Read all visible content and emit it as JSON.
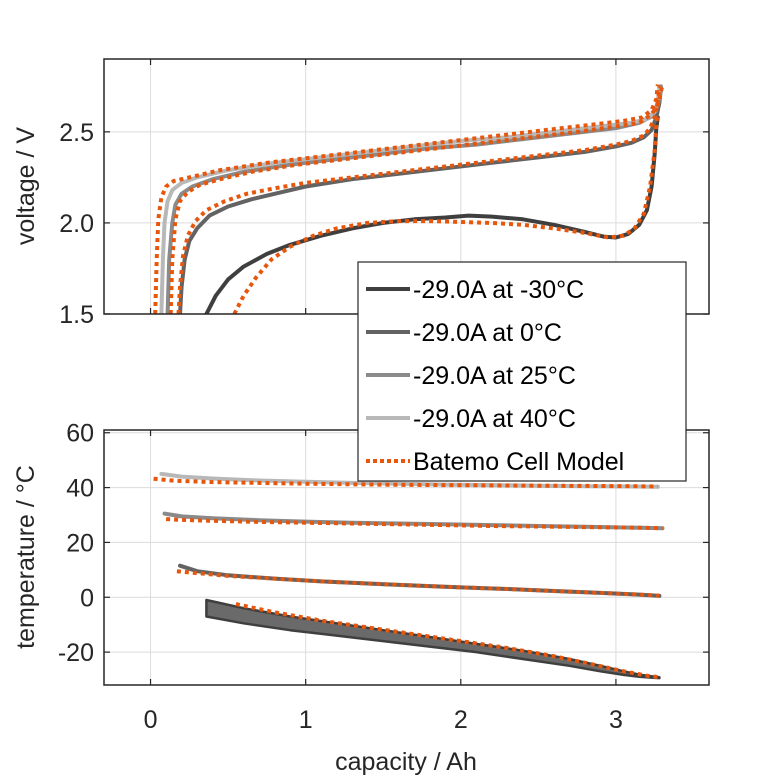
{
  "chart_data": [
    {
      "type": "line",
      "panel": "top",
      "title": "",
      "xlabel": "",
      "ylabel": "voltage / V",
      "xlim": [
        -0.3,
        3.6
      ],
      "ylim": [
        1.5,
        2.9
      ],
      "xticks": [
        0,
        1,
        2,
        3
      ],
      "yticks": [
        1.5,
        2.0,
        2.5
      ],
      "ytick_labels": [
        "1.5",
        "2.0",
        "2.5"
      ],
      "show_xtick_labels": false,
      "grid": true,
      "series": [
        {
          "name": "-29.0A at -30°C",
          "color": "#3f3f3f",
          "style": "solid",
          "x": [
            0.36,
            0.42,
            0.5,
            0.6,
            0.75,
            0.9,
            1.1,
            1.3,
            1.5,
            1.7,
            1.9,
            2.05,
            2.2,
            2.4,
            2.6,
            2.8,
            2.92,
            3.0,
            3.08,
            3.15,
            3.2,
            3.23,
            3.25,
            3.26,
            3.27
          ],
          "y": [
            1.5,
            1.6,
            1.69,
            1.76,
            1.83,
            1.88,
            1.93,
            1.97,
            2.0,
            2.02,
            2.03,
            2.04,
            2.035,
            2.02,
            1.99,
            1.95,
            1.925,
            1.92,
            1.94,
            1.99,
            2.07,
            2.2,
            2.38,
            2.52,
            2.58
          ]
        },
        {
          "name": "-29.0A at 0°C",
          "color": "#636363",
          "style": "solid",
          "x": [
            0.19,
            0.2,
            0.22,
            0.25,
            0.3,
            0.38,
            0.5,
            0.65,
            0.8,
            1.0,
            1.3,
            1.6,
            1.9,
            2.2,
            2.5,
            2.8,
            3.0,
            3.1,
            3.18,
            3.23,
            3.26,
            3.28,
            3.29
          ],
          "y": [
            1.5,
            1.65,
            1.8,
            1.9,
            1.97,
            2.04,
            2.09,
            2.13,
            2.16,
            2.2,
            2.24,
            2.27,
            2.3,
            2.33,
            2.36,
            2.39,
            2.42,
            2.44,
            2.47,
            2.51,
            2.58,
            2.66,
            2.74
          ]
        },
        {
          "name": "-29.0A at 25°C",
          "color": "#8a8a8a",
          "style": "solid",
          "x": [
            0.11,
            0.12,
            0.14,
            0.16,
            0.2,
            0.27,
            0.4,
            0.6,
            0.9,
            1.2,
            1.5,
            1.8,
            2.1,
            2.4,
            2.7,
            3.0,
            3.15,
            3.22,
            3.26,
            3.28,
            3.29
          ],
          "y": [
            1.5,
            1.8,
            2.0,
            2.1,
            2.16,
            2.2,
            2.24,
            2.28,
            2.32,
            2.35,
            2.38,
            2.41,
            2.43,
            2.46,
            2.49,
            2.52,
            2.55,
            2.58,
            2.62,
            2.68,
            2.75
          ]
        },
        {
          "name": "-29.0A at 40°C",
          "color": "#b8b8b8",
          "style": "solid",
          "x": [
            0.07,
            0.08,
            0.09,
            0.11,
            0.14,
            0.2,
            0.3,
            0.5,
            0.8,
            1.1,
            1.4,
            1.7,
            2.0,
            2.3,
            2.6,
            2.9,
            3.1,
            3.2,
            3.25,
            3.27,
            3.28
          ],
          "y": [
            1.5,
            1.8,
            2.0,
            2.12,
            2.18,
            2.22,
            2.25,
            2.29,
            2.33,
            2.36,
            2.39,
            2.42,
            2.45,
            2.47,
            2.5,
            2.53,
            2.55,
            2.57,
            2.61,
            2.67,
            2.74
          ]
        },
        {
          "name": "Batemo Cell Model",
          "color": "#e8560c",
          "style": "dotted",
          "curves": [
            {
              "x": [
                0.54,
                0.6,
                0.68,
                0.78,
                0.9,
                1.05,
                1.2,
                1.4,
                1.6,
                1.8,
                2.0,
                2.2,
                2.4,
                2.6,
                2.8,
                2.95,
                3.05,
                3.12,
                3.18,
                3.22,
                3.25,
                3.26,
                3.27
              ],
              "y": [
                1.5,
                1.6,
                1.7,
                1.8,
                1.87,
                1.93,
                1.97,
                2.0,
                2.01,
                2.01,
                2.005,
                2.0,
                1.99,
                1.97,
                1.945,
                1.92,
                1.93,
                1.97,
                2.05,
                2.2,
                2.4,
                2.54,
                2.6
              ]
            },
            {
              "x": [
                0.18,
                0.19,
                0.21,
                0.24,
                0.29,
                0.36,
                0.48,
                0.62,
                0.8,
                1.0,
                1.3,
                1.6,
                1.9,
                2.2,
                2.5,
                2.8,
                3.0,
                3.1,
                3.18,
                3.22,
                3.25,
                3.27,
                3.28
              ],
              "y": [
                1.5,
                1.65,
                1.82,
                1.93,
                2.01,
                2.07,
                2.12,
                2.16,
                2.19,
                2.22,
                2.25,
                2.28,
                2.31,
                2.34,
                2.37,
                2.4,
                2.43,
                2.45,
                2.48,
                2.52,
                2.58,
                2.66,
                2.75
              ]
            },
            {
              "x": [
                0.13,
                0.14,
                0.16,
                0.19,
                0.24,
                0.32,
                0.45,
                0.65,
                0.95,
                1.25,
                1.55,
                1.85,
                2.15,
                2.45,
                2.75,
                3.0,
                3.15,
                3.22,
                3.26,
                3.28,
                3.3
              ],
              "y": [
                1.5,
                1.8,
                2.02,
                2.12,
                2.17,
                2.21,
                2.24,
                2.28,
                2.32,
                2.35,
                2.38,
                2.41,
                2.44,
                2.47,
                2.5,
                2.53,
                2.55,
                2.59,
                2.63,
                2.68,
                2.76
              ]
            },
            {
              "x": [
                0.03,
                0.04,
                0.05,
                0.07,
                0.1,
                0.15,
                0.25,
                0.45,
                0.75,
                1.05,
                1.35,
                1.65,
                1.95,
                2.25,
                2.55,
                2.85,
                3.05,
                3.17,
                3.23,
                3.26,
                3.27
              ],
              "y": [
                1.5,
                1.8,
                2.02,
                2.14,
                2.2,
                2.23,
                2.25,
                2.29,
                2.33,
                2.36,
                2.39,
                2.42,
                2.45,
                2.48,
                2.51,
                2.54,
                2.56,
                2.58,
                2.62,
                2.68,
                2.76
              ]
            }
          ]
        }
      ],
      "legend": {
        "position": "inside-bottom-right",
        "entries": [
          {
            "label": "-29.0A at -30°C",
            "color": "#3f3f3f",
            "style": "solid"
          },
          {
            "label": "-29.0A at 0°C",
            "color": "#636363",
            "style": "solid"
          },
          {
            "label": "-29.0A at 25°C",
            "color": "#8a8a8a",
            "style": "solid"
          },
          {
            "label": "-29.0A at 40°C",
            "color": "#b8b8b8",
            "style": "solid"
          },
          {
            "label": "Batemo Cell Model",
            "color": "#e8560c",
            "style": "dotted"
          }
        ]
      }
    },
    {
      "type": "line",
      "panel": "bottom",
      "title": "",
      "xlabel": "capacity / Ah",
      "ylabel": "temperature / °C",
      "xlim": [
        -0.3,
        3.6
      ],
      "ylim": [
        -32,
        61
      ],
      "xticks": [
        0,
        1,
        2,
        3
      ],
      "xtick_labels": [
        "0",
        "1",
        "2",
        "3"
      ],
      "yticks": [
        -20,
        0,
        20,
        40,
        60
      ],
      "ytick_labels": [
        "-20",
        "0",
        "20",
        "40",
        "60"
      ],
      "grid": true,
      "series": [
        {
          "name": "-29.0A at -30°C",
          "color": "#3f3f3f",
          "style": "band",
          "x": [
            0.36,
            0.6,
            0.9,
            1.2,
            1.5,
            1.8,
            2.1,
            2.4,
            2.7,
            2.9,
            3.05,
            3.15,
            3.25,
            3.28
          ],
          "y_upper": [
            -1,
            -4,
            -7,
            -9.5,
            -12,
            -14.5,
            -17,
            -19.5,
            -22.5,
            -25,
            -27,
            -28.2,
            -29,
            -29.2
          ],
          "y_lower": [
            -7,
            -9.5,
            -12,
            -14,
            -16,
            -18,
            -20,
            -22.5,
            -25,
            -27,
            -28.3,
            -29,
            -29.4,
            -29.5
          ]
        },
        {
          "name": "-29.0A at 0°C",
          "color": "#636363",
          "style": "solid",
          "x": [
            0.19,
            0.3,
            0.5,
            0.8,
            1.1,
            1.4,
            1.7,
            2.0,
            2.3,
            2.6,
            2.9,
            3.1,
            3.28
          ],
          "y": [
            11.5,
            9.5,
            8,
            6.8,
            5.8,
            5,
            4.3,
            3.6,
            3,
            2.3,
            1.6,
            1.1,
            0.5
          ]
        },
        {
          "name": "-29.0A at 25°C",
          "color": "#8a8a8a",
          "style": "solid",
          "x": [
            0.09,
            0.2,
            0.4,
            0.7,
            1.0,
            1.3,
            1.6,
            1.9,
            2.2,
            2.5,
            2.8,
            3.1,
            3.3
          ],
          "y": [
            30.5,
            29.5,
            28.8,
            28.1,
            27.6,
            27.2,
            26.9,
            26.6,
            26.3,
            26,
            25.7,
            25.4,
            25.2
          ]
        },
        {
          "name": "-29.0A at 40°C",
          "color": "#b8b8b8",
          "style": "solid",
          "x": [
            0.07,
            0.2,
            0.4,
            0.7,
            1.0,
            1.3,
            1.6,
            1.9,
            2.2,
            2.5,
            2.8,
            3.1,
            3.27
          ],
          "y": [
            45,
            44,
            43.3,
            42.6,
            42.1,
            41.7,
            41.4,
            41.1,
            40.9,
            40.7,
            40.5,
            40.4,
            40.3
          ]
        },
        {
          "name": "Batemo Cell Model",
          "color": "#e8560c",
          "style": "dotted",
          "curves": [
            {
              "x": [
                0.55,
                0.8,
                1.1,
                1.4,
                1.7,
                2.0,
                2.3,
                2.6,
                2.85,
                3.05,
                3.2,
                3.28
              ],
              "y": [
                -2.5,
                -5.5,
                -8.5,
                -11,
                -13.5,
                -16,
                -18.5,
                -21.5,
                -24.5,
                -27,
                -28.6,
                -29.2
              ]
            },
            {
              "x": [
                0.17,
                0.3,
                0.5,
                0.8,
                1.1,
                1.4,
                1.7,
                2.0,
                2.3,
                2.6,
                2.9,
                3.1,
                3.28
              ],
              "y": [
                9.5,
                8.8,
                7.8,
                6.8,
                5.8,
                5,
                4.3,
                3.6,
                3,
                2.3,
                1.6,
                1.1,
                0.6
              ]
            },
            {
              "x": [
                0.1,
                0.2,
                0.4,
                0.7,
                1.0,
                1.3,
                1.6,
                1.9,
                2.2,
                2.5,
                2.8,
                3.1,
                3.3
              ],
              "y": [
                28.5,
                28.2,
                27.9,
                27.5,
                27.2,
                26.9,
                26.6,
                26.3,
                26,
                25.8,
                25.6,
                25.4,
                25.2
              ]
            },
            {
              "x": [
                0.02,
                0.15,
                0.4,
                0.7,
                1.0,
                1.3,
                1.6,
                1.9,
                2.2,
                2.5,
                2.8,
                3.1,
                3.27
              ],
              "y": [
                43.2,
                42.5,
                42,
                41.7,
                41.4,
                41.2,
                41,
                40.9,
                40.8,
                40.7,
                40.6,
                40.5,
                40.4
              ]
            }
          ]
        }
      ]
    }
  ]
}
